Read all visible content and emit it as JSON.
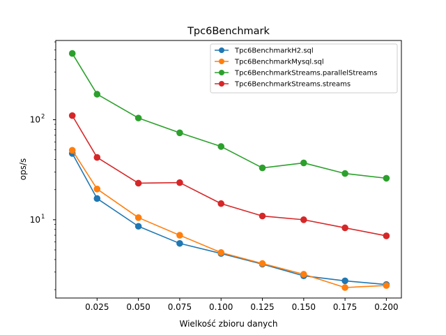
{
  "chart_data": {
    "type": "line",
    "title": "Tpc6Benchmark",
    "xlabel": "Wielkość zbioru danych",
    "ylabel": "ops/s",
    "yscale": "log",
    "xlim": [
      0.0,
      0.2091
    ],
    "ylim": [
      1.65,
      620
    ],
    "x": [
      0.01,
      0.025,
      0.05,
      0.075,
      0.1,
      0.125,
      0.15,
      0.175,
      0.2
    ],
    "x_ticks": [
      {
        "value": 0.025,
        "label": "0.025"
      },
      {
        "value": 0.05,
        "label": "0.050"
      },
      {
        "value": 0.075,
        "label": "0.075"
      },
      {
        "value": 0.1,
        "label": "0.100"
      },
      {
        "value": 0.125,
        "label": "0.125"
      },
      {
        "value": 0.15,
        "label": "0.150"
      },
      {
        "value": 0.175,
        "label": "0.175"
      },
      {
        "value": 0.2,
        "label": "0.200"
      }
    ],
    "y_ticks": [
      {
        "value": 10,
        "label": "10",
        "sup": "1"
      },
      {
        "value": 100,
        "label": "10",
        "sup": "2"
      }
    ],
    "legend_position": "top-right",
    "series": [
      {
        "name": "Tpc6BenchmarkH2.sql",
        "color": "#1f77b4",
        "values": [
          46,
          16.3,
          8.6,
          5.8,
          4.6,
          3.6,
          2.75,
          2.45,
          2.25
        ]
      },
      {
        "name": "Tpc6BenchmarkMysql.sql",
        "color": "#ff7f0e",
        "values": [
          49.5,
          20.3,
          10.5,
          7.0,
          4.7,
          3.65,
          2.85,
          2.1,
          2.2
        ]
      },
      {
        "name": "Tpc6BenchmarkStreams.parallelStreams",
        "color": "#2ca02c",
        "values": [
          460,
          180,
          104,
          74,
          54,
          33,
          37,
          29,
          26
        ]
      },
      {
        "name": "Tpc6BenchmarkStreams.streams",
        "color": "#d62728",
        "values": [
          110,
          42,
          23.2,
          23.5,
          14.5,
          10.9,
          10.0,
          8.3,
          6.9
        ]
      }
    ]
  }
}
